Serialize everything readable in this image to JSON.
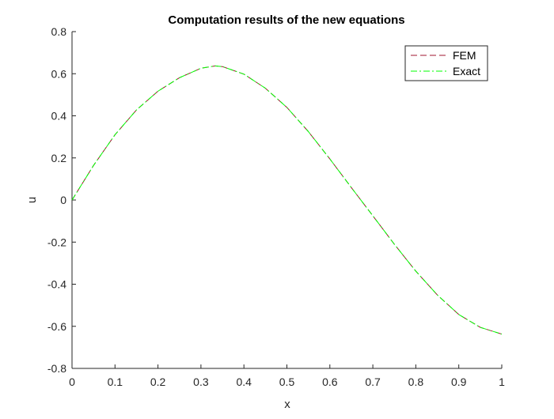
{
  "chart_data": {
    "type": "line",
    "title": "Computation results of the new equations",
    "xlabel": "x",
    "ylabel": "u",
    "xlim": [
      0,
      1
    ],
    "ylim": [
      -0.8,
      0.8
    ],
    "xticks": [
      0,
      0.1,
      0.2,
      0.3,
      0.4,
      0.5,
      0.6,
      0.7,
      0.8,
      0.9,
      1
    ],
    "xtick_labels": [
      "0",
      "0.1",
      "0.2",
      "0.3",
      "0.4",
      "0.5",
      "0.6",
      "0.7",
      "0.8",
      "0.9",
      "1"
    ],
    "yticks": [
      -0.8,
      -0.6,
      -0.4,
      -0.2,
      0,
      0.2,
      0.4,
      0.6,
      0.8
    ],
    "ytick_labels": [
      "-0.8",
      "-0.6",
      "-0.4",
      "-0.2",
      "0",
      "0.2",
      "0.4",
      "0.6",
      "0.8"
    ],
    "grid": false,
    "legend_position": "top-right",
    "x": [
      0,
      0.05,
      0.1,
      0.15,
      0.2,
      0.25,
      0.3,
      0.333,
      0.35,
      0.4,
      0.45,
      0.5,
      0.55,
      0.6,
      0.65,
      0.7,
      0.75,
      0.8,
      0.85,
      0.9,
      0.95,
      1.0
    ],
    "series": [
      {
        "name": "FEM",
        "color": "#a2142f",
        "dash": "dashed",
        "values": [
          0.0,
          0.164,
          0.31,
          0.428,
          0.517,
          0.581,
          0.626,
          0.637,
          0.634,
          0.598,
          0.531,
          0.44,
          0.325,
          0.195,
          0.059,
          -0.075,
          -0.21,
          -0.338,
          -0.451,
          -0.544,
          -0.605,
          -0.637
        ]
      },
      {
        "name": "Exact",
        "color": "#00ff00",
        "dash": "dashdot",
        "values": [
          0.0,
          0.164,
          0.31,
          0.428,
          0.517,
          0.581,
          0.626,
          0.637,
          0.634,
          0.598,
          0.531,
          0.44,
          0.325,
          0.195,
          0.059,
          -0.075,
          -0.21,
          -0.338,
          -0.451,
          -0.544,
          -0.605,
          -0.637
        ]
      }
    ]
  }
}
